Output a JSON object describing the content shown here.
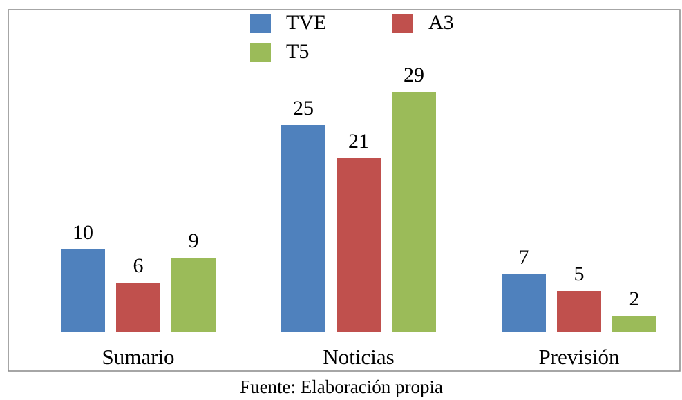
{
  "chart_data": {
    "type": "bar",
    "categories": [
      "Sumario",
      "Noticias",
      "Previsión"
    ],
    "series": [
      {
        "name": "TVE",
        "color": "#4f81bd",
        "values": [
          10,
          25,
          7
        ]
      },
      {
        "name": "A3",
        "color": "#c0504d",
        "values": [
          6,
          21,
          5
        ]
      },
      {
        "name": "T5",
        "color": "#9bbb59",
        "values": [
          9,
          29,
          2
        ]
      }
    ],
    "ylim": [
      0,
      35
    ],
    "caption": "Fuente: Elaboración propia"
  }
}
